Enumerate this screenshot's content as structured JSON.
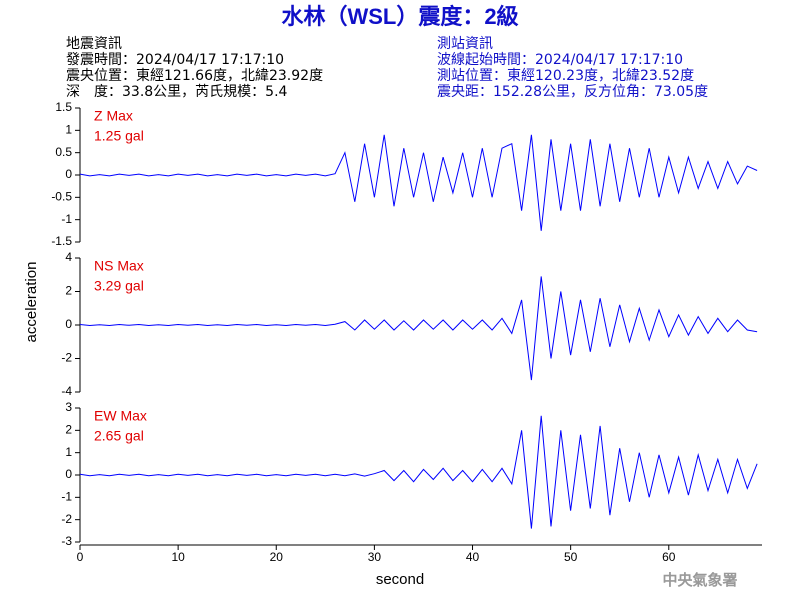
{
  "header": {
    "title": "水林（WSL）震度：2級",
    "left": [
      "地震資訊",
      "發震時間：2024/04/17 17:17:10",
      "震央位置：東經121.66度，北緯23.92度",
      "深　度：33.8公里，芮氏規模：5.4"
    ],
    "right": [
      "測站資訊",
      "波線起始時間：2024/04/17 17:17:10",
      "測站位置：東經120.23度，北緯23.52度",
      "震央距：152.28公里，反方位角：73.05度"
    ],
    "ylabel": "acceleration",
    "footer": "中央氣象署"
  },
  "chart_data": [
    {
      "type": "line",
      "labels": [
        "Z Max",
        "1.25 gal"
      ],
      "color": "#0000ff",
      "label_color": "#e00000",
      "xlim": [
        0,
        69.5
      ],
      "ylim": [
        -1.5,
        1.5
      ],
      "yticks": [
        -1.5,
        -1,
        -0.5,
        0,
        0.5,
        1,
        1.5
      ],
      "x": [
        0,
        1,
        2,
        3,
        4,
        5,
        6,
        7,
        8,
        9,
        10,
        11,
        12,
        13,
        14,
        15,
        16,
        17,
        18,
        19,
        20,
        21,
        22,
        23,
        24,
        25,
        26,
        27,
        28,
        29,
        30,
        31,
        32,
        33,
        34,
        35,
        36,
        37,
        38,
        39,
        40,
        41,
        42,
        43,
        44,
        45,
        46,
        47,
        48,
        49,
        50,
        51,
        52,
        53,
        54,
        55,
        56,
        57,
        58,
        59,
        60,
        61,
        62,
        63,
        64,
        65,
        66,
        67,
        68,
        69
      ],
      "values": [
        0.02,
        -0.02,
        0.01,
        -0.02,
        0.02,
        -0.01,
        0.02,
        -0.02,
        0.01,
        -0.02,
        0.02,
        -0.01,
        0.02,
        -0.02,
        0.01,
        -0.02,
        0.02,
        -0.01,
        0.02,
        -0.02,
        0.01,
        -0.02,
        0.02,
        -0.01,
        0.02,
        -0.02,
        0.03,
        0.5,
        -0.6,
        0.7,
        -0.5,
        0.9,
        -0.7,
        0.6,
        -0.5,
        0.5,
        -0.6,
        0.4,
        -0.4,
        0.5,
        -0.5,
        0.6,
        -0.5,
        0.6,
        0.7,
        -0.8,
        0.9,
        -1.25,
        0.8,
        -0.8,
        0.7,
        -0.8,
        0.8,
        -0.7,
        0.7,
        -0.6,
        0.6,
        -0.5,
        0.6,
        -0.5,
        0.4,
        -0.4,
        0.4,
        -0.3,
        0.3,
        -0.3,
        0.3,
        -0.2,
        0.2,
        0.1
      ]
    },
    {
      "type": "line",
      "labels": [
        "NS Max",
        "3.29 gal"
      ],
      "color": "#0000ff",
      "label_color": "#e00000",
      "xlim": [
        0,
        69.5
      ],
      "ylim": [
        -4,
        4
      ],
      "yticks": [
        -4,
        -2,
        0,
        2,
        4
      ],
      "x": [
        0,
        1,
        2,
        3,
        4,
        5,
        6,
        7,
        8,
        9,
        10,
        11,
        12,
        13,
        14,
        15,
        16,
        17,
        18,
        19,
        20,
        21,
        22,
        23,
        24,
        25,
        26,
        27,
        28,
        29,
        30,
        31,
        32,
        33,
        34,
        35,
        36,
        37,
        38,
        39,
        40,
        41,
        42,
        43,
        44,
        45,
        46,
        47,
        48,
        49,
        50,
        51,
        52,
        53,
        54,
        55,
        56,
        57,
        58,
        59,
        60,
        61,
        62,
        63,
        64,
        65,
        66,
        67,
        68,
        69
      ],
      "values": [
        0.03,
        -0.03,
        0.02,
        -0.03,
        0.03,
        -0.02,
        0.03,
        -0.03,
        0.02,
        -0.03,
        0.03,
        -0.02,
        0.03,
        -0.03,
        0.02,
        -0.03,
        0.03,
        -0.02,
        0.03,
        -0.03,
        0.02,
        -0.03,
        0.03,
        -0.02,
        0.03,
        -0.03,
        0.05,
        0.2,
        -0.3,
        0.3,
        -0.25,
        0.3,
        -0.3,
        0.25,
        -0.3,
        0.3,
        -0.25,
        0.3,
        -0.3,
        0.3,
        -0.25,
        0.3,
        -0.3,
        0.4,
        -0.5,
        1.5,
        -3.29,
        2.9,
        -2.0,
        2.0,
        -1.8,
        1.5,
        -1.6,
        1.6,
        -1.3,
        1.2,
        -1.0,
        1.0,
        -0.9,
        0.9,
        -0.7,
        0.6,
        -0.6,
        0.5,
        -0.5,
        0.4,
        -0.4,
        0.3,
        -0.3,
        -0.4
      ]
    },
    {
      "type": "line",
      "labels": [
        "EW Max",
        "2.65 gal"
      ],
      "color": "#0000ff",
      "label_color": "#e00000",
      "xlim": [
        0,
        69.5
      ],
      "ylim": [
        -3,
        3
      ],
      "yticks": [
        -3,
        -2,
        -1,
        0,
        1,
        2,
        3
      ],
      "xticks": [
        0,
        10,
        20,
        30,
        40,
        50,
        60
      ],
      "xlabel": "second",
      "x": [
        0,
        1,
        2,
        3,
        4,
        5,
        6,
        7,
        8,
        9,
        10,
        11,
        12,
        13,
        14,
        15,
        16,
        17,
        18,
        19,
        20,
        21,
        22,
        23,
        24,
        25,
        26,
        27,
        28,
        29,
        30,
        31,
        32,
        33,
        34,
        35,
        36,
        37,
        38,
        39,
        40,
        41,
        42,
        43,
        44,
        45,
        46,
        47,
        48,
        49,
        50,
        51,
        52,
        53,
        54,
        55,
        56,
        57,
        58,
        59,
        60,
        61,
        62,
        63,
        64,
        65,
        66,
        67,
        68,
        69
      ],
      "values": [
        0.03,
        -0.03,
        0.02,
        -0.03,
        0.03,
        -0.02,
        0.03,
        -0.03,
        0.02,
        -0.03,
        0.03,
        -0.02,
        0.03,
        -0.03,
        0.02,
        -0.03,
        0.03,
        -0.02,
        0.03,
        -0.03,
        0.02,
        -0.03,
        0.03,
        -0.02,
        0.03,
        -0.03,
        0.03,
        -0.03,
        0.05,
        -0.05,
        0.06,
        0.2,
        -0.25,
        0.2,
        -0.3,
        0.25,
        -0.2,
        0.3,
        -0.25,
        0.2,
        -0.3,
        0.25,
        -0.3,
        0.3,
        -0.4,
        2.0,
        -2.4,
        2.65,
        -2.3,
        2.0,
        -1.6,
        1.8,
        -1.5,
        2.2,
        -1.8,
        1.2,
        -1.2,
        1.0,
        -1.0,
        0.9,
        -0.8,
        0.8,
        -0.9,
        0.9,
        -0.7,
        0.7,
        -0.8,
        0.7,
        -0.6,
        0.5
      ]
    }
  ]
}
